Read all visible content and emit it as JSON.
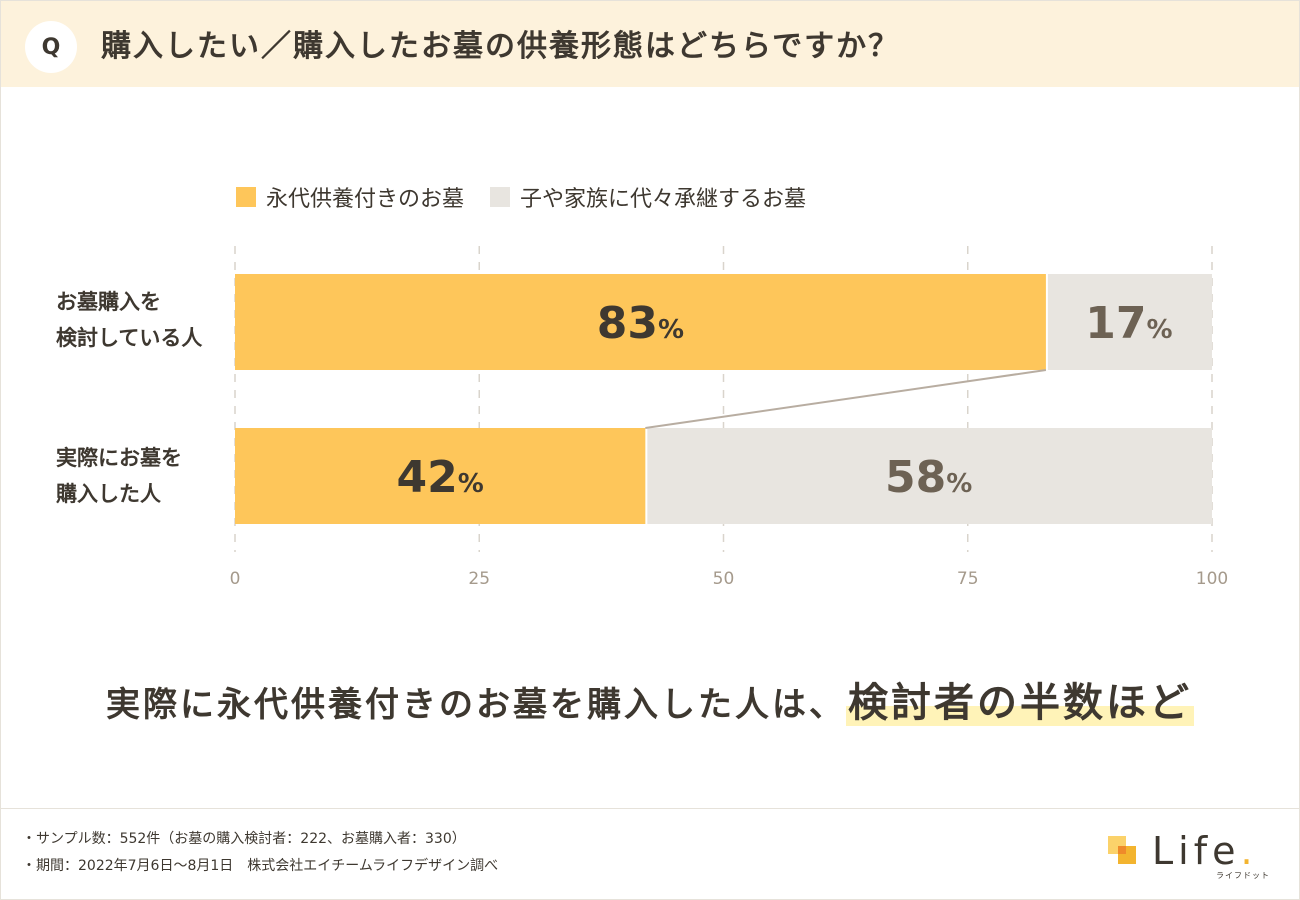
{
  "question": {
    "badge": "Q",
    "text": "購入したい／購入したお墓の供養形態はどちらですか？"
  },
  "colors": {
    "header_bg": "#fdf2dc",
    "series_1": "#fec65a",
    "series_2": "#e8e5e0",
    "text_dark": "#3e3830",
    "text_muted": "#6d6254",
    "highlight": "#fff3b8",
    "connector": "#b8ada1"
  },
  "chart_data": {
    "type": "bar",
    "orientation": "horizontal",
    "stacked": true,
    "categories": [
      [
        "お墓購入を",
        "検討している人"
      ],
      [
        "実際にお墓を",
        "購入した人"
      ]
    ],
    "series": [
      {
        "name": "永代供養付きのお墓",
        "values": [
          83,
          42
        ]
      },
      {
        "name": "子や家族に代々承継するお墓",
        "values": [
          17,
          58
        ]
      }
    ],
    "data_labels": [
      [
        "83",
        "17"
      ],
      [
        "42",
        "58"
      ]
    ],
    "unit_suffix": "%",
    "xlim": [
      0,
      100
    ],
    "x_ticks": [
      0,
      25,
      50,
      75,
      100
    ],
    "grid": true,
    "legend_position": "top"
  },
  "conclusion": {
    "prefix": "実際に永代供養付きのお墓を購入した人は、",
    "highlight": "検討者の半数ほど"
  },
  "footer": {
    "notes": [
      "・サンプル数：552件（お墓の購入検討者：222、お墓購入者：330）",
      "・期間：2022年7月6日〜8月1日　株式会社エイチームライフデザイン調べ"
    ],
    "logo_word": "Life",
    "logo_dot": ".",
    "logo_sub": "ライフドット"
  }
}
